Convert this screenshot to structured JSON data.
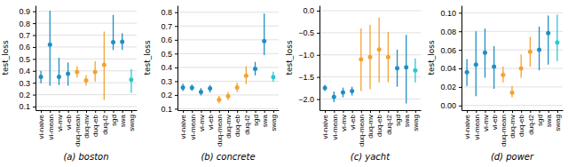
{
  "chart_data": [
    {
      "type": "scatter",
      "title": "(a) boston",
      "ylabel": "test_loss",
      "ylim": [
        0.07,
        0.95
      ],
      "yticks": [
        0.1,
        0.2,
        0.3,
        0.4,
        0.5,
        0.6,
        0.7,
        0.8,
        0.9
      ],
      "grid": true,
      "categories": [
        "vi-naive",
        "vi-mean",
        "vi-mv",
        "vi-eb",
        "duq-mean",
        "duq-mv",
        "duq-eb",
        "duq-t2",
        "sgd",
        "swa",
        "swag"
      ],
      "values": [
        0.35,
        0.62,
        0.35,
        0.375,
        0.39,
        0.32,
        0.39,
        0.45,
        0.64,
        0.645,
        0.325
      ],
      "lows": [
        0.295,
        0.275,
        0.28,
        0.275,
        0.345,
        0.275,
        0.31,
        0.155,
        0.575,
        0.575,
        0.215
      ],
      "highs": [
        0.4,
        0.905,
        0.51,
        0.47,
        0.44,
        0.365,
        0.48,
        0.73,
        0.87,
        0.715,
        0.415
      ],
      "colors": [
        "#1f8fc4",
        "#1f8fc4",
        "#1f8fc4",
        "#1f8fc4",
        "#f5a233",
        "#f5a233",
        "#f5a233",
        "#f5a233",
        "#1f8fc4",
        "#1f8fc4",
        "#29c7d4"
      ]
    },
    {
      "type": "scatter",
      "title": "(b) concrete",
      "ylabel": "test_loss",
      "ylim": [
        0.09,
        0.85
      ],
      "yticks": [
        0.1,
        0.2,
        0.3,
        0.4,
        0.5,
        0.6,
        0.7,
        0.8
      ],
      "grid": true,
      "categories": [
        "vi-naive",
        "vi-mean",
        "vi-mv",
        "vi-eb",
        "duq-mean",
        "duq-mv",
        "duq-eb",
        "duq-t2",
        "sgd",
        "swa",
        "swag"
      ],
      "values": [
        0.255,
        0.252,
        0.222,
        0.248,
        0.165,
        0.192,
        0.255,
        0.34,
        0.39,
        0.59,
        0.33
      ],
      "lows": [
        0.228,
        0.23,
        0.197,
        0.218,
        0.14,
        0.162,
        0.222,
        0.278,
        0.342,
        0.49,
        0.296
      ],
      "highs": [
        0.282,
        0.275,
        0.25,
        0.272,
        0.193,
        0.222,
        0.29,
        0.408,
        0.44,
        0.79,
        0.368
      ],
      "colors": [
        "#1f8fc4",
        "#1f8fc4",
        "#1f8fc4",
        "#1f8fc4",
        "#f5a233",
        "#f5a233",
        "#f5a233",
        "#f5a233",
        "#1f8fc4",
        "#1f8fc4",
        "#29c7d4"
      ]
    },
    {
      "type": "scatter",
      "title": "(c) yacht",
      "ylabel": "test_loss",
      "ylim": [
        -2.25,
        0.12
      ],
      "yticks": [
        {
          "value": -2.0,
          "label": "−2.0"
        },
        {
          "value": -1.5,
          "label": "−1.5"
        },
        {
          "value": -1.0,
          "label": "−1.0"
        },
        {
          "value": -0.5,
          "label": "−0.5"
        },
        {
          "value": 0.0,
          "label": "0.0"
        }
      ],
      "grid": true,
      "categories": [
        "vi-naive",
        "vi-mean",
        "vi-mv",
        "vi-eb",
        "duq-mean",
        "duq-mv",
        "duq-eb",
        "duq-t2",
        "sgd",
        "swa",
        "swag"
      ],
      "values": [
        -1.75,
        -1.95,
        -1.85,
        -1.82,
        -1.1,
        -1.05,
        -0.88,
        -1.05,
        -1.3,
        -1.28,
        -1.35
      ],
      "lows": [
        -1.82,
        -2.07,
        -1.96,
        -1.92,
        -1.82,
        -1.78,
        -1.62,
        -1.62,
        -1.72,
        -2.1,
        -1.62
      ],
      "highs": [
        -1.68,
        -1.83,
        -1.74,
        -1.72,
        -0.4,
        -0.32,
        -0.15,
        -0.48,
        -0.88,
        -0.55,
        -1.08
      ],
      "colors": [
        "#1f8fc4",
        "#1f8fc4",
        "#1f8fc4",
        "#1f8fc4",
        "#f5a233",
        "#f5a233",
        "#f5a233",
        "#f5a233",
        "#1f8fc4",
        "#1f8fc4",
        "#29c7d4"
      ]
    },
    {
      "type": "scatter",
      "title": "(d) power",
      "ylabel": "test_loss",
      "ylim": [
        -0.005,
        0.108
      ],
      "yticks": [
        {
          "value": 0.0,
          "label": "0.00"
        },
        0.02,
        0.04,
        0.06,
        0.08,
        {
          "value": 0.1,
          "label": "0.10"
        }
      ],
      "grid": true,
      "categories": [
        "vi-naive",
        "vi-mean",
        "vi-mv",
        "vi-eb",
        "duq-mean",
        "duq-mv",
        "duq-eb",
        "duq-t2",
        "sgd",
        "swa",
        "swag"
      ],
      "values": [
        0.036,
        0.044,
        0.057,
        0.042,
        0.033,
        0.014,
        0.04,
        0.058,
        0.06,
        0.078,
        0.068
      ],
      "lows": [
        0.021,
        0.01,
        0.03,
        0.018,
        0.025,
        0.009,
        0.03,
        0.042,
        0.038,
        0.044,
        0.048
      ],
      "highs": [
        0.05,
        0.08,
        0.083,
        0.064,
        0.042,
        0.021,
        0.055,
        0.074,
        0.085,
        0.097,
        0.098
      ],
      "colors": [
        "#1f8fc4",
        "#1f8fc4",
        "#1f8fc4",
        "#1f8fc4",
        "#f5a233",
        "#f5a233",
        "#f5a233",
        "#f5a233",
        "#1f8fc4",
        "#1f8fc4",
        "#29c7d4"
      ]
    }
  ]
}
